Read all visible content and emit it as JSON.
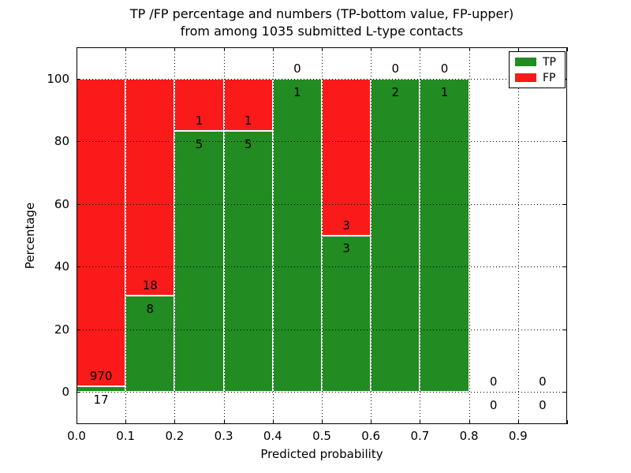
{
  "chart_data": {
    "type": "bar",
    "stacked": true,
    "title_line1": "TP /FP percentage and numbers (TP-bottom value, FP-upper)",
    "title_line2": "from among 1035 submitted L-type contacts",
    "xlabel": "Predicted probability",
    "ylabel": "Percentage",
    "total_contacts": 1035,
    "xlim": [
      0.0,
      1.0
    ],
    "ylim": [
      -10.5,
      110
    ],
    "grid": "dotted",
    "legend_position": "upper right",
    "x_tick_labels": [
      "0.0",
      "0.1",
      "0.2",
      "0.3",
      "0.4",
      "0.5",
      "0.6",
      "0.7",
      "0.8",
      "0.9"
    ],
    "y_tick_labels": [
      "0",
      "20",
      "40",
      "60",
      "80",
      "100"
    ],
    "y_tick_values": [
      0,
      20,
      40,
      60,
      80,
      100
    ],
    "bin_width": 0.1,
    "bins": [
      {
        "x_start": 0.0,
        "tp": 17,
        "fp": 970,
        "tp_pct": 1.72
      },
      {
        "x_start": 0.1,
        "tp": 8,
        "fp": 18,
        "tp_pct": 30.77
      },
      {
        "x_start": 0.2,
        "tp": 5,
        "fp": 1,
        "tp_pct": 83.33
      },
      {
        "x_start": 0.3,
        "tp": 5,
        "fp": 1,
        "tp_pct": 83.33
      },
      {
        "x_start": 0.4,
        "tp": 1,
        "fp": 0,
        "tp_pct": 100
      },
      {
        "x_start": 0.5,
        "tp": 3,
        "fp": 3,
        "tp_pct": 50
      },
      {
        "x_start": 0.6,
        "tp": 2,
        "fp": 0,
        "tp_pct": 100
      },
      {
        "x_start": 0.7,
        "tp": 1,
        "fp": 0,
        "tp_pct": 100
      },
      {
        "x_start": 0.8,
        "tp": 0,
        "fp": 0,
        "tp_pct": 0
      },
      {
        "x_start": 0.9,
        "tp": 0,
        "fp": 0,
        "tp_pct": 0
      }
    ],
    "legend": [
      {
        "label": "TP",
        "color": "#228b22"
      },
      {
        "label": "FP",
        "color": "#fb1a1a"
      }
    ],
    "colors": {
      "tp": "#228b22",
      "fp": "#fb1a1a",
      "bar_edge": "#ffffff",
      "grid": "#000000"
    }
  }
}
